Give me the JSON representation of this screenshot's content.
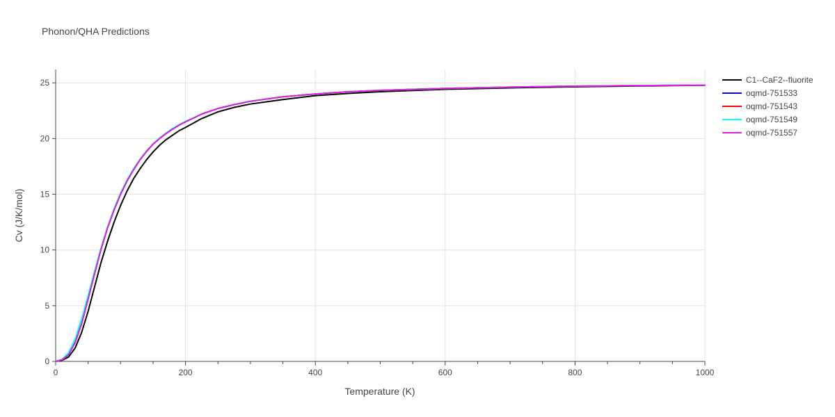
{
  "chart_data": {
    "type": "line",
    "title": "Phonon/QHA Predictions",
    "xlabel": "Temperature (K)",
    "ylabel": "Cv (J/K/mol)",
    "xlim": [
      0,
      1000
    ],
    "ylim": [
      0,
      26.2
    ],
    "xticks": [
      0,
      200,
      400,
      600,
      800,
      1000
    ],
    "yticks": [
      0,
      5,
      10,
      15,
      20,
      25
    ],
    "grid": true,
    "legend_position": "top-right-outside",
    "x": [
      0,
      10,
      20,
      30,
      40,
      50,
      60,
      70,
      80,
      90,
      100,
      110,
      120,
      130,
      140,
      150,
      160,
      170,
      180,
      190,
      200,
      225,
      250,
      275,
      300,
      350,
      400,
      450,
      500,
      600,
      700,
      800,
      900,
      1000
    ],
    "series": [
      {
        "name": "C1--CaF2--fluorite",
        "color": "#000000",
        "values": [
          0,
          0.1,
          0.4,
          1.2,
          2.6,
          4.5,
          6.7,
          8.9,
          10.8,
          12.5,
          14.0,
          15.3,
          16.4,
          17.3,
          18.1,
          18.8,
          19.4,
          19.9,
          20.3,
          20.7,
          21.0,
          21.8,
          22.4,
          22.8,
          23.1,
          23.5,
          23.85,
          24.05,
          24.2,
          24.42,
          24.55,
          24.65,
          24.72,
          24.78
        ]
      },
      {
        "name": "oqmd-751533",
        "color": "#0000ff",
        "values": [
          0,
          0.15,
          0.6,
          1.7,
          3.4,
          5.6,
          7.9,
          10.1,
          12.0,
          13.6,
          15.0,
          16.2,
          17.2,
          18.1,
          18.85,
          19.5,
          20.0,
          20.45,
          20.85,
          21.2,
          21.5,
          22.2,
          22.7,
          23.05,
          23.35,
          23.75,
          24.0,
          24.2,
          24.33,
          24.5,
          24.62,
          24.7,
          24.76,
          24.8
        ]
      },
      {
        "name": "oqmd-751543",
        "color": "#ff0000",
        "values": [
          0,
          0.15,
          0.6,
          1.7,
          3.4,
          5.6,
          7.9,
          10.1,
          12.0,
          13.6,
          15.0,
          16.2,
          17.2,
          18.1,
          18.85,
          19.5,
          20.0,
          20.45,
          20.85,
          21.2,
          21.5,
          22.2,
          22.7,
          23.05,
          23.35,
          23.75,
          24.0,
          24.2,
          24.33,
          24.5,
          24.62,
          24.7,
          24.76,
          24.8
        ]
      },
      {
        "name": "oqmd-751549",
        "color": "#00ffff",
        "values": [
          0,
          0.2,
          0.8,
          2.0,
          3.8,
          5.9,
          8.1,
          10.2,
          12.1,
          13.7,
          15.1,
          16.3,
          17.3,
          18.15,
          18.9,
          19.5,
          20.05,
          20.5,
          20.9,
          21.25,
          21.55,
          22.2,
          22.7,
          23.05,
          23.35,
          23.75,
          24.0,
          24.2,
          24.33,
          24.5,
          24.62,
          24.7,
          24.76,
          24.8
        ]
      },
      {
        "name": "oqmd-751557",
        "color": "#dd22dd",
        "values": [
          0,
          0.15,
          0.6,
          1.7,
          3.4,
          5.6,
          7.9,
          10.1,
          12.0,
          13.6,
          15.0,
          16.2,
          17.2,
          18.1,
          18.85,
          19.5,
          20.0,
          20.45,
          20.85,
          21.2,
          21.5,
          22.2,
          22.7,
          23.05,
          23.35,
          23.75,
          24.0,
          24.2,
          24.33,
          24.5,
          24.62,
          24.7,
          24.76,
          24.8
        ]
      }
    ]
  }
}
